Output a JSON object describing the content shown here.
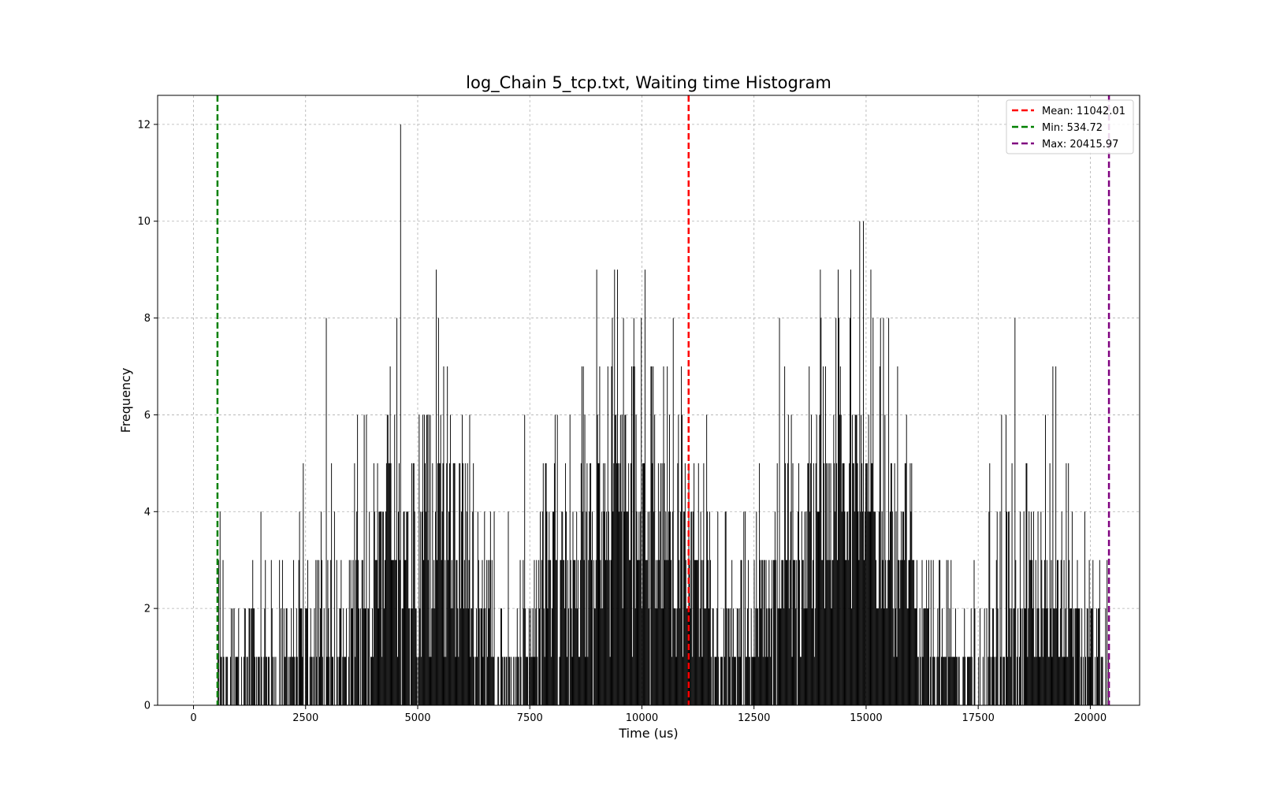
{
  "chart_data": {
    "type": "bar",
    "title": "log_Chain 5_tcp.txt, Waiting time Histogram",
    "xlabel": "Time (us)",
    "ylabel": "Frequency",
    "xlim": [
      -800,
      21100
    ],
    "ylim": [
      0,
      12.6
    ],
    "xticks": [
      0,
      2500,
      5000,
      7500,
      10000,
      12500,
      15000,
      17500,
      20000
    ],
    "yticks": [
      0,
      2,
      4,
      6,
      8,
      10,
      12
    ],
    "grid": true,
    "legend_position": "top-right",
    "bar_color": "#000000",
    "bin_range": [
      534.72,
      20415.97
    ],
    "bin_count": 1200,
    "envelope": [
      [
        534.72,
        1
      ],
      [
        1500,
        1
      ],
      [
        2500,
        1.5
      ],
      [
        3500,
        2
      ],
      [
        4000,
        3
      ],
      [
        4600,
        4
      ],
      [
        5400,
        4.6
      ],
      [
        6000,
        3.2
      ],
      [
        6800,
        1.5
      ],
      [
        7300,
        1
      ],
      [
        7600,
        2
      ],
      [
        8300,
        3
      ],
      [
        8900,
        4.2
      ],
      [
        9400,
        5.2
      ],
      [
        9900,
        4.8
      ],
      [
        10600,
        3.6
      ],
      [
        11000,
        3.4
      ],
      [
        11300,
        2.2
      ],
      [
        11800,
        1.2
      ],
      [
        12300,
        1
      ],
      [
        12700,
        2
      ],
      [
        13400,
        3.2
      ],
      [
        14000,
        4.4
      ],
      [
        14500,
        5.4
      ],
      [
        15000,
        4.6
      ],
      [
        15600,
        3.4
      ],
      [
        16200,
        2
      ],
      [
        16800,
        1.2
      ],
      [
        17300,
        1
      ],
      [
        17800,
        1.6
      ],
      [
        18400,
        2.4
      ],
      [
        19000,
        2.8
      ],
      [
        19600,
        2.4
      ],
      [
        20415.97,
        1
      ]
    ],
    "reference_lines": [
      {
        "label": "Mean: 11042.01",
        "value": 11042.01,
        "color": "#ff0000"
      },
      {
        "label": "Min: 534.72",
        "value": 534.72,
        "color": "#008000"
      },
      {
        "label": "Max: 20415.97",
        "value": 20415.97,
        "color": "#800080"
      }
    ]
  }
}
